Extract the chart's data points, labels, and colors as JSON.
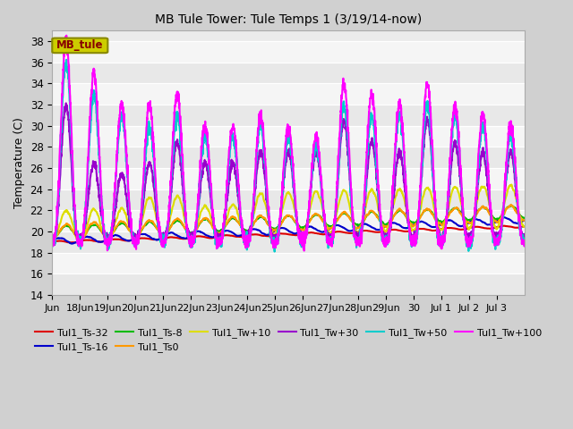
{
  "title": "MB Tule Tower: Tule Temps 1 (3/19/14-now)",
  "ylabel": "Temperature (C)",
  "ylim": [
    14,
    39
  ],
  "yticks": [
    14,
    16,
    18,
    20,
    22,
    24,
    26,
    28,
    30,
    32,
    34,
    36,
    38
  ],
  "series": [
    {
      "label": "Tul1_Ts-32",
      "color": "#dd0000",
      "lw": 1.5
    },
    {
      "label": "Tul1_Ts-16",
      "color": "#0000cc",
      "lw": 1.5
    },
    {
      "label": "Tul1_Ts-8",
      "color": "#00bb00",
      "lw": 1.5
    },
    {
      "label": "Tul1_Ts0",
      "color": "#ff9900",
      "lw": 1.5
    },
    {
      "label": "Tul1_Tw+10",
      "color": "#dddd00",
      "lw": 1.5
    },
    {
      "label": "Tul1_Tw+30",
      "color": "#9900cc",
      "lw": 1.5
    },
    {
      "label": "Tul1_Tw+50",
      "color": "#00cccc",
      "lw": 1.5
    },
    {
      "label": "Tul1_Tw+100",
      "color": "#ff00ff",
      "lw": 1.5
    }
  ],
  "x_labels": [
    "Jun",
    "18Jun",
    "19Jun",
    "20Jun",
    "21Jun",
    "22Jun",
    "23Jun",
    "24Jun",
    "25Jun",
    "26Jun",
    "27Jun",
    "28Jun",
    "29Jun",
    "30",
    "Jul 1",
    "Jul 2",
    "Jul 3"
  ],
  "legend_box_text": "MB_tule",
  "legend_box_facecolor": "#cccc00",
  "legend_box_edgecolor": "#888800",
  "legend_box_text_color": "#880000"
}
